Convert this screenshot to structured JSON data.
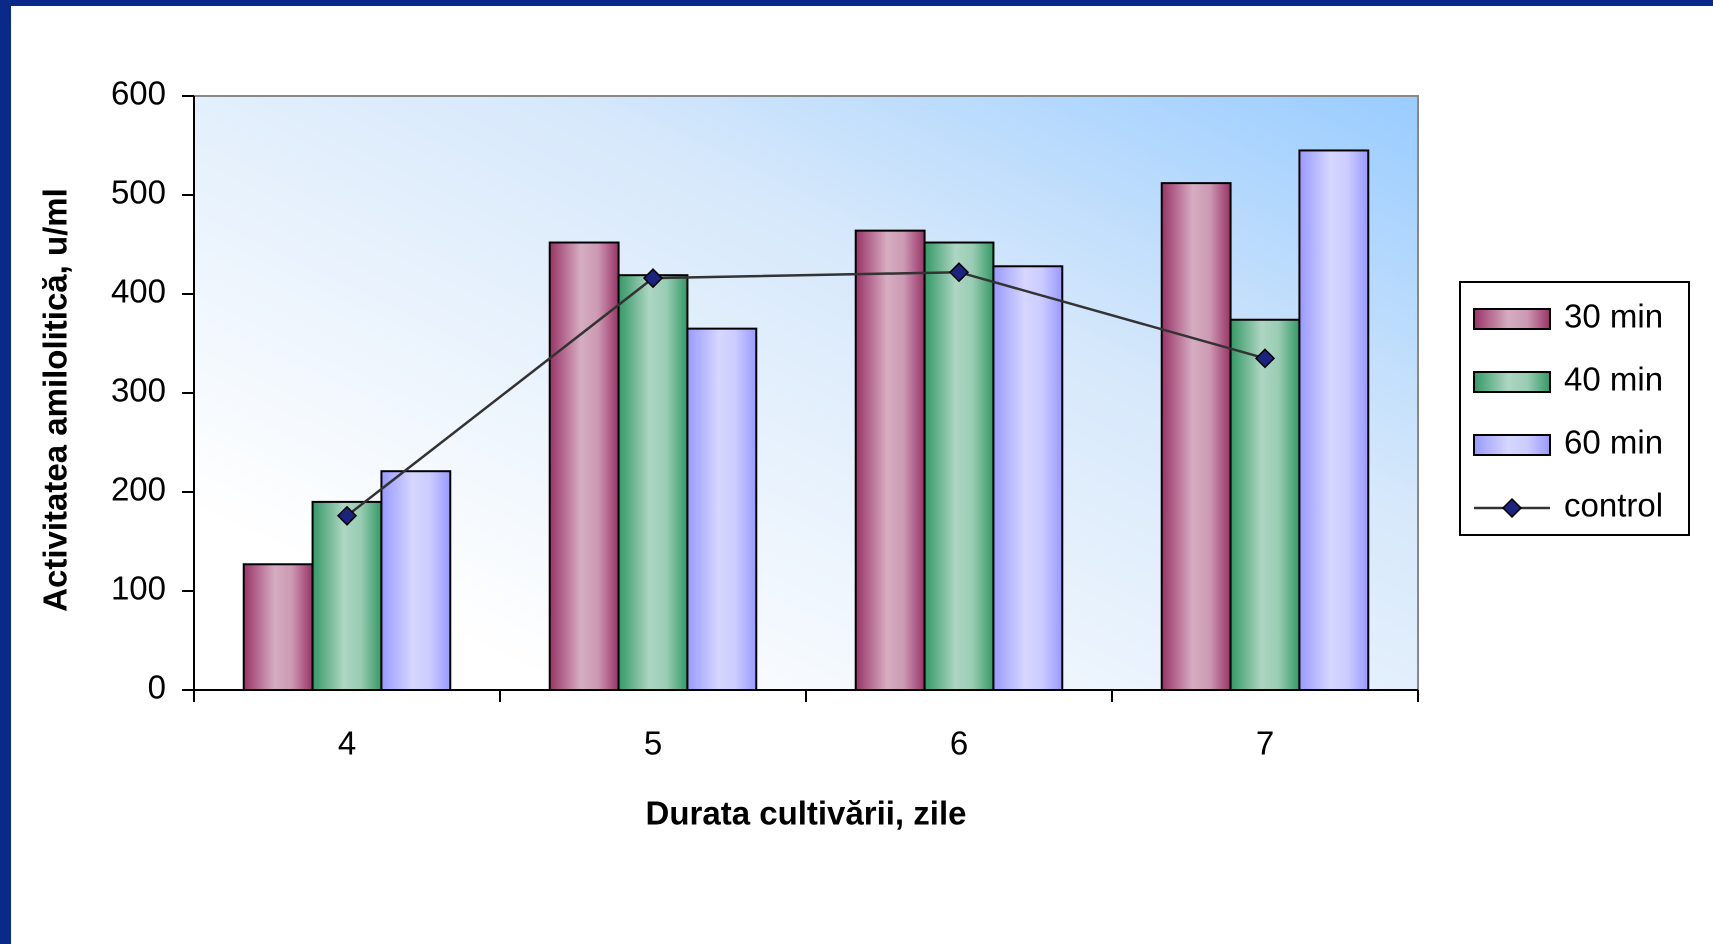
{
  "chart_data": {
    "type": "bar_line",
    "xlabel": "Durata cultivării, zile",
    "ylabel": "Activitatea amilolitică, u/ml",
    "categories": [
      "4",
      "5",
      "6",
      "7"
    ],
    "series": [
      {
        "name": "30 min",
        "type": "bar",
        "color": "#993366",
        "values": [
          127,
          452,
          464,
          512
        ]
      },
      {
        "name": "40 min",
        "type": "bar",
        "color": "#339966",
        "values": [
          190,
          419,
          452,
          374
        ]
      },
      {
        "name": "60 min",
        "type": "bar",
        "color": "#9999ff",
        "values": [
          221,
          365,
          428,
          545
        ]
      },
      {
        "name": "control",
        "type": "line",
        "color": "#333333",
        "marker_color": "#1a237e",
        "values": [
          176,
          416,
          422,
          335
        ]
      }
    ],
    "ylim": [
      0,
      600
    ],
    "yticks": [
      0,
      100,
      200,
      300,
      400,
      500,
      600
    ],
    "legend": "right"
  }
}
